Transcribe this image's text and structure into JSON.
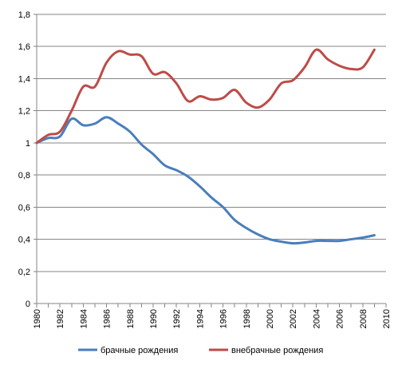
{
  "chart_data": {
    "type": "line",
    "title": "",
    "xlabel": "",
    "ylabel": "",
    "xlim": [
      1980,
      2010
    ],
    "ylim": [
      0,
      1.8
    ],
    "grid": "horizontal",
    "legend_position": "bottom",
    "y_ticks": [
      "0",
      "0,2",
      "0,4",
      "0,6",
      "0,8",
      "1",
      "1,2",
      "1,4",
      "1,6",
      "1,8"
    ],
    "x_ticks": [
      "1980",
      "1982",
      "1984",
      "1986",
      "1988",
      "1990",
      "1992",
      "1994",
      "1996",
      "1998",
      "2000",
      "2002",
      "2004",
      "2006",
      "2008",
      "2010"
    ],
    "x": [
      1980,
      1981,
      1982,
      1983,
      1984,
      1985,
      1986,
      1987,
      1988,
      1989,
      1990,
      1991,
      1992,
      1993,
      1994,
      1995,
      1996,
      1997,
      1998,
      1999,
      2000,
      2001,
      2002,
      2003,
      2004,
      2005,
      2006,
      2007,
      2008,
      2009
    ],
    "series": [
      {
        "name": "брачные рождения",
        "color": "#4a7ebb",
        "values": [
          1.0,
          1.03,
          1.04,
          1.15,
          1.11,
          1.12,
          1.16,
          1.12,
          1.07,
          0.99,
          0.93,
          0.86,
          0.83,
          0.79,
          0.73,
          0.66,
          0.6,
          0.52,
          0.47,
          0.43,
          0.4,
          0.385,
          0.375,
          0.38,
          0.39,
          0.39,
          0.39,
          0.4,
          0.41,
          0.425
        ]
      },
      {
        "name": "внебрачные рождения",
        "color": "#be4b48",
        "values": [
          1.0,
          1.05,
          1.07,
          1.2,
          1.35,
          1.35,
          1.5,
          1.57,
          1.55,
          1.54,
          1.43,
          1.44,
          1.37,
          1.26,
          1.29,
          1.27,
          1.28,
          1.33,
          1.25,
          1.22,
          1.27,
          1.37,
          1.39,
          1.47,
          1.58,
          1.52,
          1.48,
          1.46,
          1.47,
          1.58
        ]
      }
    ]
  }
}
